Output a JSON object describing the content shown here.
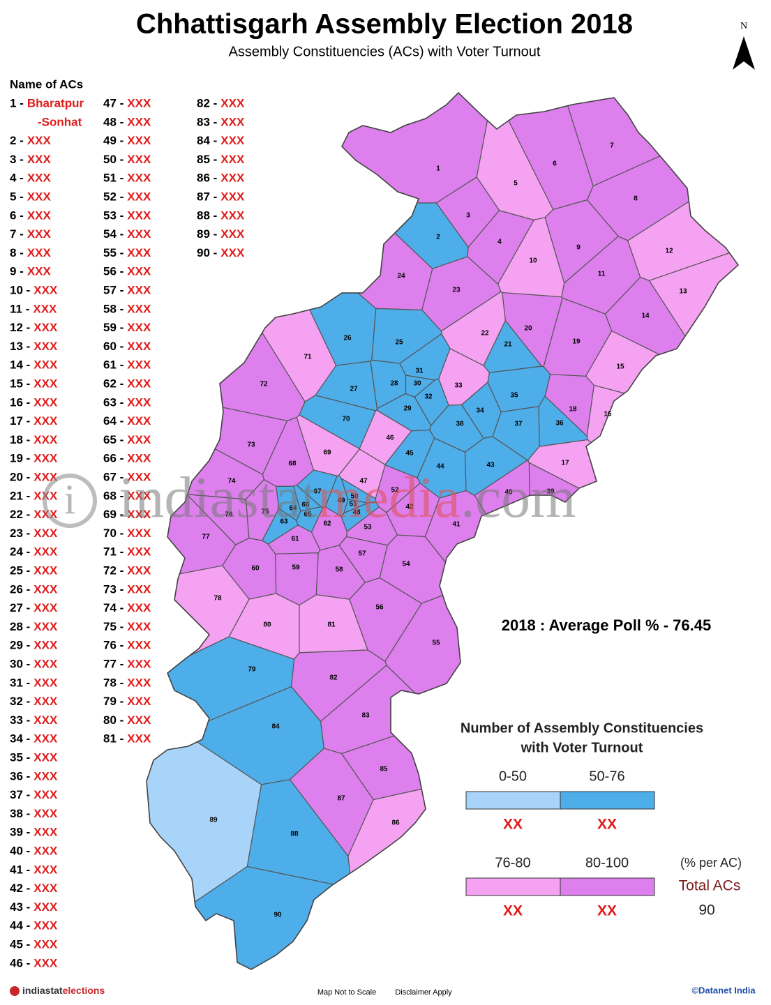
{
  "header": {
    "title": "Chhattisgarh Assembly Election 2018",
    "subtitle": "Assembly Constituencies (ACs) with Voter Turnout",
    "north": "N"
  },
  "list": {
    "title": "Name of ACs",
    "items": [
      [
        "1 -",
        [
          "Bharatpur",
          "-Sonhat"
        ]
      ],
      [
        "2 -",
        "XXX"
      ],
      [
        "3 -",
        "XXX"
      ],
      [
        "4 -",
        "XXX"
      ],
      [
        "5 -",
        "XXX"
      ],
      [
        "6 -",
        "XXX"
      ],
      [
        "7 -",
        "XXX"
      ],
      [
        "8 -",
        "XXX"
      ],
      [
        "9 -",
        "XXX"
      ],
      [
        "10 -",
        "XXX"
      ],
      [
        "11 -",
        "XXX"
      ],
      [
        "12 -",
        "XXX"
      ],
      [
        "13 -",
        "XXX"
      ],
      [
        "14 -",
        "XXX"
      ],
      [
        "15 -",
        "XXX"
      ],
      [
        "16 -",
        "XXX"
      ],
      [
        "17 -",
        "XXX"
      ],
      [
        "18 -",
        "XXX"
      ],
      [
        "19 -",
        "XXX"
      ],
      [
        "20 -",
        "XXX"
      ],
      [
        "21 -",
        "XXX"
      ],
      [
        "22 -",
        "XXX"
      ],
      [
        "23 -",
        "XXX"
      ],
      [
        "24 -",
        "XXX"
      ],
      [
        "25 -",
        "XXX"
      ],
      [
        "26 -",
        "XXX"
      ],
      [
        "27 -",
        "XXX"
      ],
      [
        "28 -",
        "XXX"
      ],
      [
        "29 -",
        "XXX"
      ],
      [
        "30 -",
        "XXX"
      ],
      [
        "31 -",
        "XXX"
      ],
      [
        "32 -",
        "XXX"
      ],
      [
        "33 -",
        "XXX"
      ],
      [
        "34 -",
        "XXX"
      ],
      [
        "35 -",
        "XXX"
      ],
      [
        "36 -",
        "XXX"
      ],
      [
        "37 -",
        "XXX"
      ],
      [
        "38 -",
        "XXX"
      ],
      [
        "39 -",
        "XXX"
      ],
      [
        "40 -",
        "XXX"
      ],
      [
        "41 -",
        "XXX"
      ],
      [
        "42 -",
        "XXX"
      ],
      [
        "43 -",
        "XXX"
      ],
      [
        "44 -",
        "XXX"
      ],
      [
        "45 -",
        "XXX"
      ],
      [
        "46 -",
        "XXX"
      ],
      [
        "47 -",
        "XXX"
      ],
      [
        "48 -",
        "XXX"
      ],
      [
        "49 -",
        "XXX"
      ],
      [
        "50 -",
        "XXX"
      ],
      [
        "51 -",
        "XXX"
      ],
      [
        "52 -",
        "XXX"
      ],
      [
        "53 -",
        "XXX"
      ],
      [
        "54 -",
        "XXX"
      ],
      [
        "55 -",
        "XXX"
      ],
      [
        "56 -",
        "XXX"
      ],
      [
        "57 -",
        "XXX"
      ],
      [
        "58 -",
        "XXX"
      ],
      [
        "59 -",
        "XXX"
      ],
      [
        "60 -",
        "XXX"
      ],
      [
        "61 -",
        "XXX"
      ],
      [
        "62 -",
        "XXX"
      ],
      [
        "63 -",
        "XXX"
      ],
      [
        "64 -",
        "XXX"
      ],
      [
        "65 -",
        "XXX"
      ],
      [
        "66 -",
        "XXX"
      ],
      [
        "67 -",
        "XXX"
      ],
      [
        "68 -",
        "XXX"
      ],
      [
        "69 -",
        "XXX"
      ],
      [
        "70 -",
        "XXX"
      ],
      [
        "71 -",
        "XXX"
      ],
      [
        "72 -",
        "XXX"
      ],
      [
        "73 -",
        "XXX"
      ],
      [
        "74 -",
        "XXX"
      ],
      [
        "75 -",
        "XXX"
      ],
      [
        "76 -",
        "XXX"
      ],
      [
        "77 -",
        "XXX"
      ],
      [
        "78 -",
        "XXX"
      ],
      [
        "79 -",
        "XXX"
      ],
      [
        "80 -",
        "XXX"
      ],
      [
        "81 -",
        "XXX"
      ],
      [
        "82 -",
        "XXX"
      ],
      [
        "83 -",
        "XXX"
      ],
      [
        "84 -",
        "XXX"
      ],
      [
        "85 -",
        "XXX"
      ],
      [
        "86 -",
        "XXX"
      ],
      [
        "87 -",
        "XXX"
      ],
      [
        "88 -",
        "XXX"
      ],
      [
        "89 -",
        "XXX"
      ],
      [
        "90 -",
        "XXX"
      ]
    ]
  },
  "acs": [
    {
      "label": "1",
      "color": "#dd80ee"
    },
    {
      "label": "2",
      "color": "#4eaeea"
    },
    {
      "label": "3",
      "color": "#dd80ee"
    },
    {
      "label": "4",
      "color": "#dd80ee"
    },
    {
      "label": "5",
      "color": "#f6a2f2"
    },
    {
      "label": "6",
      "color": "#dd80ee"
    },
    {
      "label": "7",
      "color": "#dd80ee"
    },
    {
      "label": "8",
      "color": "#dd80ee"
    },
    {
      "label": "9",
      "color": "#dd80ee"
    },
    {
      "label": "10",
      "color": "#f6a2f2"
    },
    {
      "label": "11",
      "color": "#dd80ee"
    },
    {
      "label": "12",
      "color": "#f6a2f2"
    },
    {
      "label": "13",
      "color": "#f6a2f2"
    },
    {
      "label": "14",
      "color": "#dd80ee"
    },
    {
      "label": "15",
      "color": "#f6a2f2"
    },
    {
      "label": "16",
      "color": "#f6a2f2"
    },
    {
      "label": "17",
      "color": "#f6a2f2"
    },
    {
      "label": "18",
      "color": "#dd80ee"
    },
    {
      "label": "19",
      "color": "#dd80ee"
    },
    {
      "label": "20",
      "color": "#dd80ee"
    },
    {
      "label": "21",
      "color": "#4eaeea"
    },
    {
      "label": "22",
      "color": "#f6a2f2"
    },
    {
      "label": "23",
      "color": "#dd80ee"
    },
    {
      "label": "24",
      "color": "#dd80ee"
    },
    {
      "label": "25",
      "color": "#4eaeea"
    },
    {
      "label": "26",
      "color": "#4eaeea"
    },
    {
      "label": "27",
      "color": "#4eaeea"
    },
    {
      "label": "28",
      "color": "#4eaeea"
    },
    {
      "label": "29",
      "color": "#4eaeea"
    },
    {
      "label": "30",
      "color": "#4eaeea"
    },
    {
      "label": "31",
      "color": "#4eaeea"
    },
    {
      "label": "32",
      "color": "#4eaeea"
    },
    {
      "label": "33",
      "color": "#f6a2f2"
    },
    {
      "label": "34",
      "color": "#4eaeea"
    },
    {
      "label": "35",
      "color": "#4eaeea"
    },
    {
      "label": "36",
      "color": "#4eaeea"
    },
    {
      "label": "37",
      "color": "#4eaeea"
    },
    {
      "label": "38",
      "color": "#4eaeea"
    },
    {
      "label": "39",
      "color": "#dd80ee"
    },
    {
      "label": "40",
      "color": "#dd80ee"
    },
    {
      "label": "41",
      "color": "#dd80ee"
    },
    {
      "label": "42",
      "color": "#dd80ee"
    },
    {
      "label": "43",
      "color": "#4eaeea"
    },
    {
      "label": "44",
      "color": "#4eaeea"
    },
    {
      "label": "45",
      "color": "#4eaeea"
    },
    {
      "label": "46",
      "color": "#f6a2f2"
    },
    {
      "label": "47",
      "color": "#f6a2f2"
    },
    {
      "label": "48",
      "color": "#4eaeea"
    },
    {
      "label": "49",
      "color": "#4eaeea"
    },
    {
      "label": "50",
      "color": "#4eaeea"
    },
    {
      "label": "51",
      "color": "#4eaeea"
    },
    {
      "label": "52",
      "color": "#dd80ee"
    },
    {
      "label": "53",
      "color": "#dd80ee"
    },
    {
      "label": "54",
      "color": "#dd80ee"
    },
    {
      "label": "55",
      "color": "#dd80ee"
    },
    {
      "label": "56",
      "color": "#dd80ee"
    },
    {
      "label": "57",
      "color": "#dd80ee"
    },
    {
      "label": "58",
      "color": "#dd80ee"
    },
    {
      "label": "59",
      "color": "#dd80ee"
    },
    {
      "label": "60",
      "color": "#dd80ee"
    },
    {
      "label": "61",
      "color": "#dd80ee"
    },
    {
      "label": "62",
      "color": "#dd80ee"
    },
    {
      "label": "63",
      "color": "#4eaeea"
    },
    {
      "label": "64",
      "color": "#4eaeea"
    },
    {
      "label": "65",
      "color": "#4eaeea"
    },
    {
      "label": "66",
      "color": "#4eaeea"
    },
    {
      "label": "67",
      "color": "#4eaeea"
    },
    {
      "label": "68",
      "color": "#dd80ee"
    },
    {
      "label": "69",
      "color": "#f6a2f2"
    },
    {
      "label": "70",
      "color": "#4eaeea"
    },
    {
      "label": "71",
      "color": "#f6a2f2"
    },
    {
      "label": "72",
      "color": "#dd80ee"
    },
    {
      "label": "73",
      "color": "#dd80ee"
    },
    {
      "label": "74",
      "color": "#dd80ee"
    },
    {
      "label": "75",
      "color": "#dd80ee"
    },
    {
      "label": "76",
      "color": "#dd80ee"
    },
    {
      "label": "77",
      "color": "#dd80ee"
    },
    {
      "label": "78",
      "color": "#f6a2f2"
    },
    {
      "label": "79",
      "color": "#4eaeea"
    },
    {
      "label": "80",
      "color": "#f6a2f2"
    },
    {
      "label": "81",
      "color": "#f6a2f2"
    },
    {
      "label": "82",
      "color": "#dd80ee"
    },
    {
      "label": "83",
      "color": "#dd80ee"
    },
    {
      "label": "84",
      "color": "#4eaeea"
    },
    {
      "label": "85",
      "color": "#dd80ee"
    },
    {
      "label": "86",
      "color": "#f6a2f2"
    },
    {
      "label": "87",
      "color": "#dd80ee"
    },
    {
      "label": "88",
      "color": "#4eaeea"
    },
    {
      "label": "89",
      "color": "#a8d4fa"
    },
    {
      "label": "90",
      "color": "#4eaeea"
    }
  ],
  "average": "2018 : Average Poll % - 76.45",
  "legend": {
    "title": [
      "Number of Assembly Constituencies",
      "with Voter Turnout"
    ],
    "bands": [
      {
        "label": "0-50",
        "color": "#a8d4fa",
        "count": "XX"
      },
      {
        "label": "50-76",
        "color": "#4eaeea",
        "count": "XX"
      },
      {
        "label": "76-80",
        "color": "#f6a2f2",
        "count": "XX"
      },
      {
        "label": "80-100",
        "color": "#dd80ee",
        "count": "XX"
      }
    ],
    "unit_note": "(% per AC)",
    "total_label": "Total ACs",
    "total": 90
  },
  "watermark": [
    "i",
    "indiastat",
    "media",
    ".com"
  ],
  "footer": {
    "logo": [
      "indiastat",
      "elections"
    ],
    "note": "Map Not to Scale",
    "disclaimer": "Disclaimer Apply",
    "copyright": "©Datanet India"
  }
}
